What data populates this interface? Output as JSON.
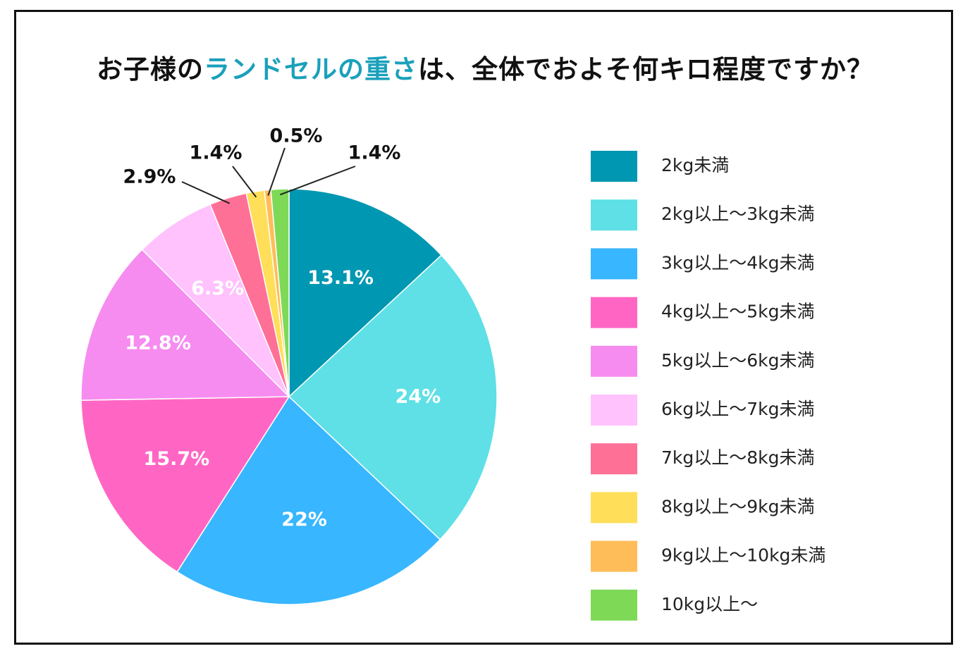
{
  "title": {
    "part1": "お子様の",
    "highlight": "ランドセルの重さ",
    "part2": "は、全体でおよそ何キロ程度ですか？",
    "highlight_color": "#1aa0bb"
  },
  "chart_data": {
    "type": "pie",
    "title": "お子様のランドセルの重さは、全体でおよそ何キロ程度ですか？",
    "categories": [
      "2kg未満",
      "2kg以上〜3kg未満",
      "3kg以上〜4kg未満",
      "4kg以上〜5kg未満",
      "5kg以上〜6kg未満",
      "6kg以上〜7kg未満",
      "7kg以上〜8kg未満",
      "8kg以上〜9kg未満",
      "9kg以上〜10kg未満",
      "10kg以上〜"
    ],
    "values": [
      13.1,
      24,
      22,
      15.7,
      12.8,
      6.3,
      2.9,
      1.4,
      0.5,
      1.4
    ],
    "labels": [
      "13.1%",
      "24%",
      "22%",
      "15.7%",
      "12.8%",
      "6.3%",
      "2.9%",
      "1.4%",
      "0.5%",
      "1.4%"
    ],
    "colors": [
      "#0097b2",
      "#5ee0e6",
      "#38b6ff",
      "#ff66c4",
      "#f68cf0",
      "#ffc2fd",
      "#ff7096",
      "#ffde59",
      "#ffbd59",
      "#7ed957"
    ],
    "legend_position": "right"
  }
}
